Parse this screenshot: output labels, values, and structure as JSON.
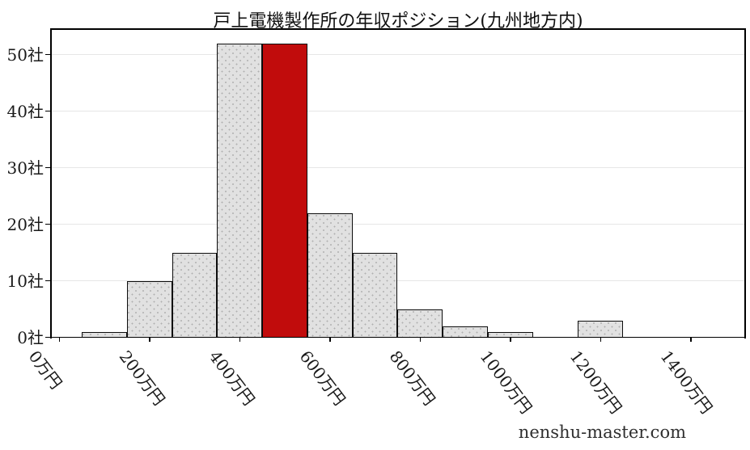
{
  "title": "戸上電機製作所の年収ポジション(九州地方内)",
  "watermark": "nenshu-master.com",
  "colors": {
    "bar_fill": "#e1e1e1",
    "bar_hatch_dot": "#b0b0b0",
    "bar_edge": "#0d0d0d",
    "highlight_fill": "#c10c0c",
    "gridline": "#e6e6e6",
    "spine": "#000000",
    "text": "#1a1a1a"
  },
  "chart_data": {
    "type": "bar",
    "subtype": "histogram",
    "title": "戸上電機製作所の年収ポジション(九州地方内)",
    "xlabel": "",
    "ylabel": "",
    "bin_width": 100,
    "bins": [
      {
        "center": 100,
        "count": 1,
        "highlight": false
      },
      {
        "center": 200,
        "count": 10,
        "highlight": false
      },
      {
        "center": 300,
        "count": 15,
        "highlight": false
      },
      {
        "center": 400,
        "count": 52,
        "highlight": false
      },
      {
        "center": 500,
        "count": 52,
        "highlight": true
      },
      {
        "center": 600,
        "count": 22,
        "highlight": false
      },
      {
        "center": 700,
        "count": 15,
        "highlight": false
      },
      {
        "center": 800,
        "count": 5,
        "highlight": false
      },
      {
        "center": 900,
        "count": 2,
        "highlight": false
      },
      {
        "center": 1000,
        "count": 1,
        "highlight": false
      },
      {
        "center": 1100,
        "count": 0,
        "highlight": false
      },
      {
        "center": 1200,
        "count": 3,
        "highlight": false
      }
    ],
    "highlight_meaning": "company position bin (500万円)",
    "x_ticks": [
      {
        "value": 0,
        "label": "0万円"
      },
      {
        "value": 200,
        "label": "200万円"
      },
      {
        "value": 400,
        "label": "400万円"
      },
      {
        "value": 600,
        "label": "600万円"
      },
      {
        "value": 800,
        "label": "800万円"
      },
      {
        "value": 1000,
        "label": "1000万円"
      },
      {
        "value": 1200,
        "label": "1200万円"
      },
      {
        "value": 1400,
        "label": "1400万円"
      }
    ],
    "y_ticks": [
      {
        "value": 0,
        "label": "0社"
      },
      {
        "value": 10,
        "label": "10社"
      },
      {
        "value": 20,
        "label": "20社"
      },
      {
        "value": 30,
        "label": "30社"
      },
      {
        "value": 40,
        "label": "40社"
      },
      {
        "value": 50,
        "label": "50社"
      }
    ],
    "xlim": [
      -18.5,
      1520.5
    ],
    "ylim": [
      0,
      54.5
    ],
    "grid": "horizontal",
    "legend": null
  }
}
